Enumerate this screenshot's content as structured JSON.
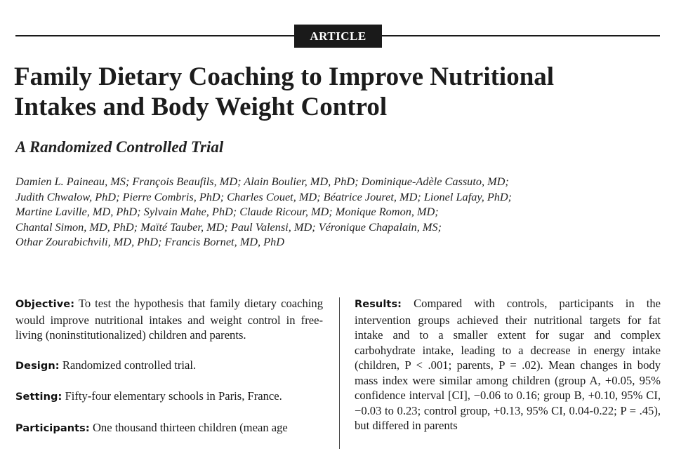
{
  "header": {
    "badge": "ARTICLE"
  },
  "title_lines": [
    "Family Dietary Coaching to Improve Nutritional",
    "Intakes and Body Weight Control"
  ],
  "subtitle": "A Randomized Controlled Trial",
  "author_lines": [
    "Damien L. Paineau, MS; François Beaufils, MD; Alain Boulier, MD, PhD; Dominique-Adèle Cassuto, MD;",
    "Judith Chwalow, PhD; Pierre Combris, PhD; Charles Couet, MD; Béatrice Jouret, MD; Lionel Lafay, PhD;",
    "Martine Laville, MD, PhD; Sylvain Mahe, PhD; Claude Ricour, MD; Monique Romon, MD;",
    "Chantal Simon, MD, PhD; Maïté Tauber, MD; Paul Valensi, MD; Véronique Chapalain, MS;",
    "Othar Zourabichvili, MD, PhD; Francis Bornet, MD, PhD"
  ],
  "abstract": {
    "objective": {
      "label": "Objective:",
      "text": " To test the hypothesis that family dietary coaching would improve nutritional intakes and weight control in free-living (noninstitutionalized) children and parents."
    },
    "design": {
      "label": "Design:",
      "text": " Randomized controlled trial."
    },
    "setting": {
      "label": "Setting:",
      "text": " Fifty-four elementary schools in Paris, France."
    },
    "participants": {
      "label": "Participants:",
      "text": " One thousand thirteen children (mean age"
    },
    "results": {
      "label": "Results:",
      "text": " Compared with controls, participants in the intervention groups achieved their nutritional targets for fat intake and to a smaller extent for sugar and complex carbohydrate intake, leading to a decrease in energy intake (children, P < .001; parents, P = .02). Mean changes in body mass index were similar among children (group A, +0.05, 95% confidence interval [CI], −0.06 to 0.16; group B, +0.10, 95% CI, −0.03 to 0.23; control group, +0.13, 95% CI, 0.04-0.22; P = .45), but differed in parents"
    }
  }
}
